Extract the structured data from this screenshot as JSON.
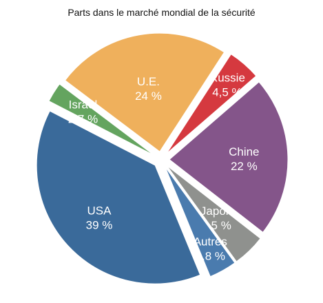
{
  "chart_data": {
    "type": "pie",
    "title": "Parts dans le marché mondial de la sécurité",
    "slices": [
      {
        "name": "U.E.",
        "value_label": "24 %",
        "value": 24,
        "color": "#EFB05C"
      },
      {
        "name": "Russie",
        "value_label": "4,5 %",
        "value": 4.5,
        "color": "#D5393F"
      },
      {
        "name": "Chine",
        "value_label": "22 %",
        "value": 22,
        "color": "#84558A"
      },
      {
        "name": "Japon",
        "value_label": "4,5 %",
        "value": 4.5,
        "color": "#8F918E"
      },
      {
        "name": "Autres",
        "value_label": "3,8 %",
        "value": 3.8,
        "color": "#4A7BAE"
      },
      {
        "name": "USA",
        "value_label": "39 %",
        "value": 39,
        "color": "#3A6A9A"
      },
      {
        "name": "Israël",
        "value_label": "2,7 %",
        "value": 2.7,
        "color": "#64A45F"
      }
    ]
  }
}
